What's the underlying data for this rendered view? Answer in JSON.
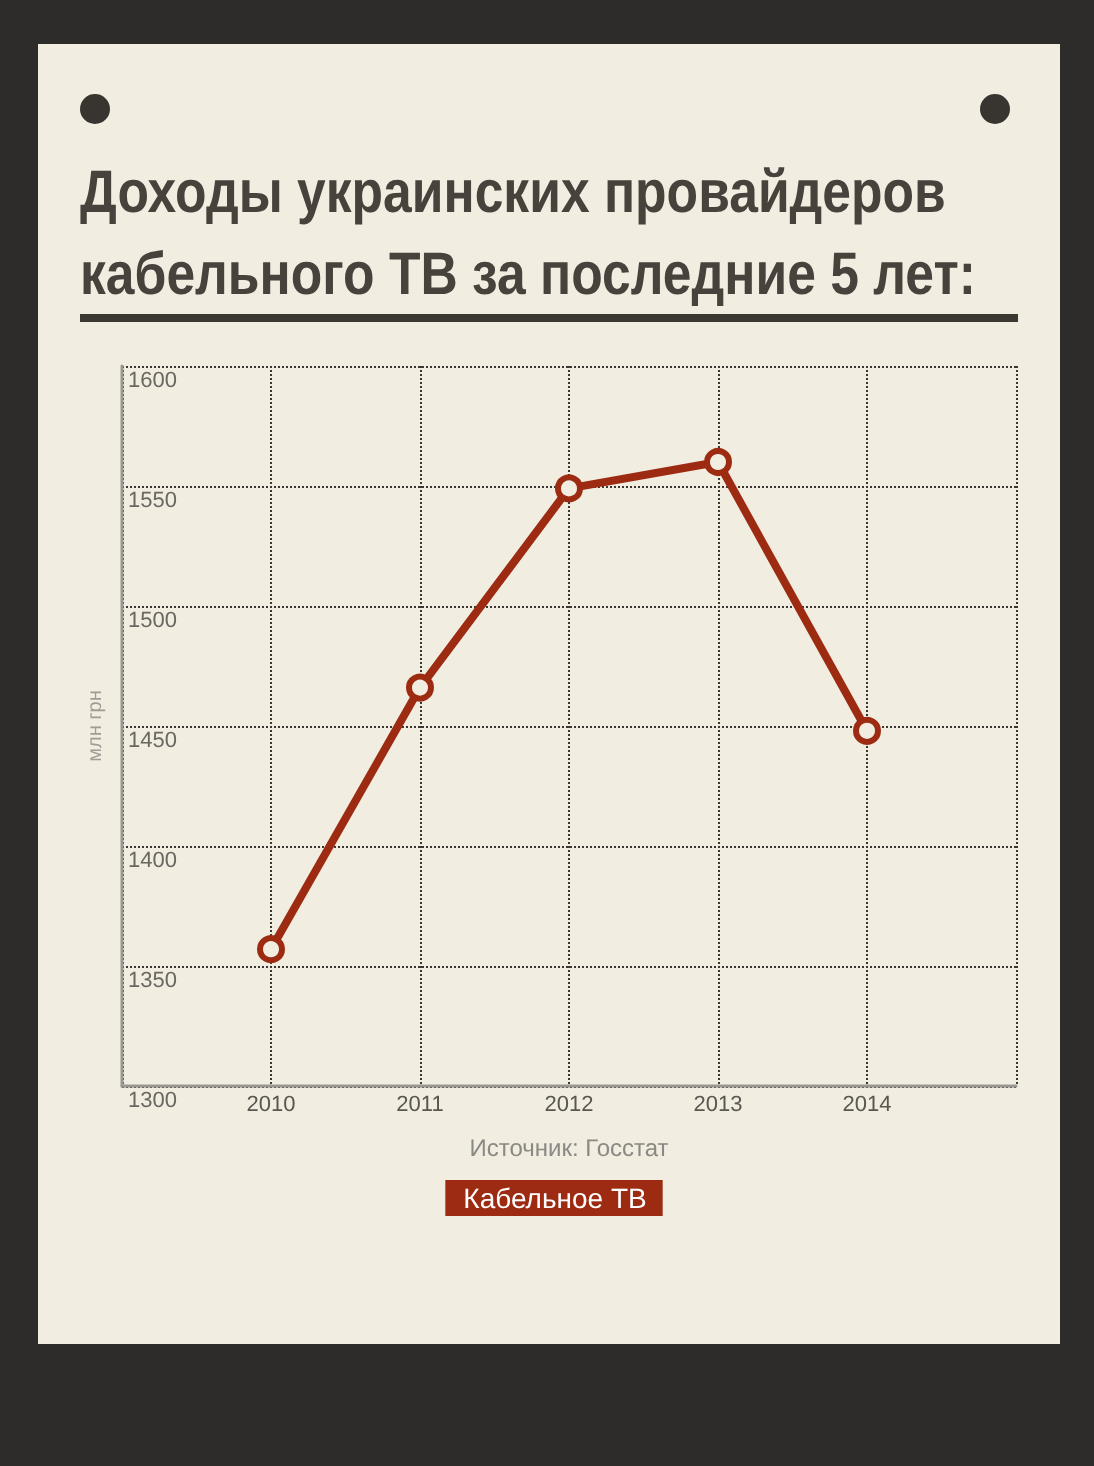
{
  "chart_data": {
    "type": "line",
    "title": "Доходы украинских провайдеров кабельного ТВ за последние 5 лет:",
    "ylabel": "млн грн",
    "x": [
      2010,
      2011,
      2012,
      2013,
      2014
    ],
    "xlim": [
      2009,
      2015
    ],
    "xticks": [
      2010,
      2011,
      2012,
      2013,
      2014
    ],
    "ylim": [
      1300,
      1600
    ],
    "yticks": [
      1300,
      1350,
      1400,
      1450,
      1500,
      1550,
      1600
    ],
    "series": [
      {
        "name": "Кабельное ТВ",
        "color": "#9c2b12",
        "values": [
          1357,
          1466,
          1549,
          1560,
          1448
        ]
      }
    ],
    "annotations": [
      "Источник: Госстат"
    ],
    "grid": true,
    "legend": "bottom",
    "marker": "circle",
    "line_style": "solid"
  }
}
